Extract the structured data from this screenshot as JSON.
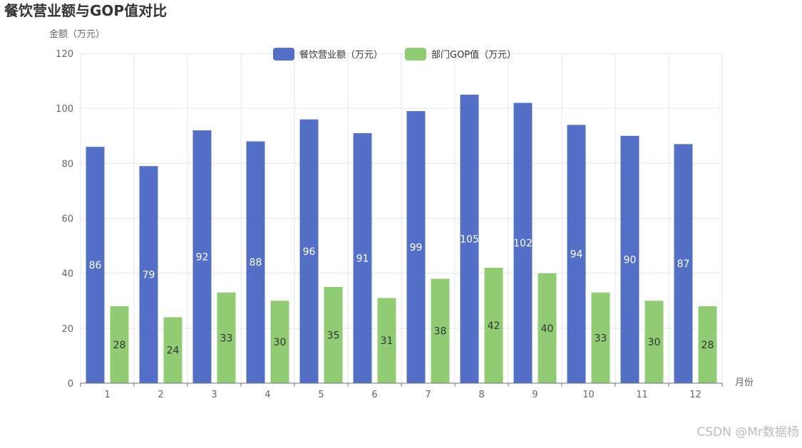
{
  "chart_data": {
    "type": "bar",
    "title": "餐饮营业额与GOP值对比",
    "xlabel": "月份",
    "ylabel": "金额（万元）",
    "categories": [
      "1",
      "2",
      "3",
      "4",
      "5",
      "6",
      "7",
      "8",
      "9",
      "10",
      "11",
      "12"
    ],
    "ylim": [
      0,
      120
    ],
    "yticks": [
      0,
      20,
      40,
      60,
      80,
      100,
      120
    ],
    "grid": true,
    "legend_position": "top",
    "series": [
      {
        "name": "餐饮营业额（万元）",
        "color": "#5470c6",
        "values": [
          86,
          79,
          92,
          88,
          96,
          91,
          99,
          105,
          102,
          94,
          90,
          87
        ]
      },
      {
        "name": "部门GOP值（万元）",
        "color": "#91cc75",
        "values": [
          28,
          24,
          33,
          30,
          35,
          31,
          38,
          42,
          40,
          33,
          30,
          28
        ]
      }
    ]
  },
  "watermark": "CSDN @Mr数据杨"
}
